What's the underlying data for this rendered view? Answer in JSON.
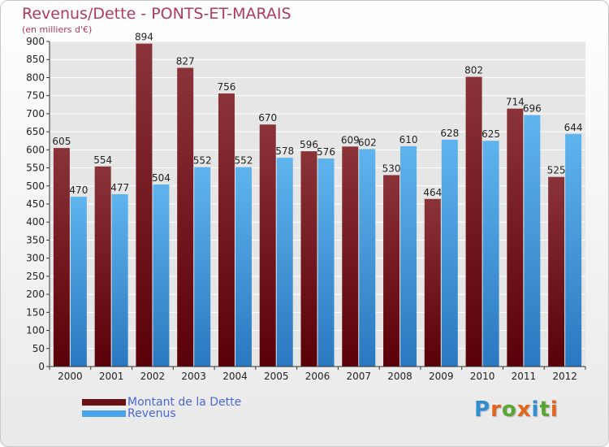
{
  "header": {
    "title": "Revenus/Dette - PONTS-ET-MARAIS",
    "subtitle": "(en milliers d'€)"
  },
  "legend": [
    {
      "label": "Montant de la Dette",
      "color": "#6b0f14"
    },
    {
      "label": "Revenus",
      "color": "#4aa3e8"
    }
  ],
  "logo": {
    "letters": [
      {
        "char": "P",
        "color": "#2f8fd0"
      },
      {
        "char": "r",
        "color": "#e0651e"
      },
      {
        "char": "o",
        "color": "#5aa632"
      },
      {
        "char": "x",
        "color": "#e0651e"
      },
      {
        "char": "i",
        "color": "#2f8fd0"
      },
      {
        "char": "t",
        "color": "#5aa632"
      },
      {
        "char": "i",
        "color": "#e0651e"
      }
    ]
  },
  "chart_data": {
    "type": "bar",
    "categories": [
      "2000",
      "2001",
      "2002",
      "2003",
      "2004",
      "2005",
      "2006",
      "2007",
      "2008",
      "2009",
      "2010",
      "2011",
      "2012"
    ],
    "series": [
      {
        "name": "Montant de la Dette",
        "values": [
          605,
          554,
          894,
          827,
          756,
          670,
          596,
          609,
          530,
          464,
          802,
          714,
          525
        ],
        "color_top": "#8a3338",
        "color_bottom": "#5a0008"
      },
      {
        "name": "Revenus",
        "values": [
          470,
          477,
          504,
          552,
          552,
          578,
          576,
          602,
          610,
          628,
          625,
          696,
          644
        ],
        "color_top": "#5fb4ee",
        "color_bottom": "#2a78c0"
      }
    ],
    "ylim": [
      0,
      900
    ],
    "ytick_step": 50,
    "grid": true,
    "legend_position": "bottom-left"
  }
}
